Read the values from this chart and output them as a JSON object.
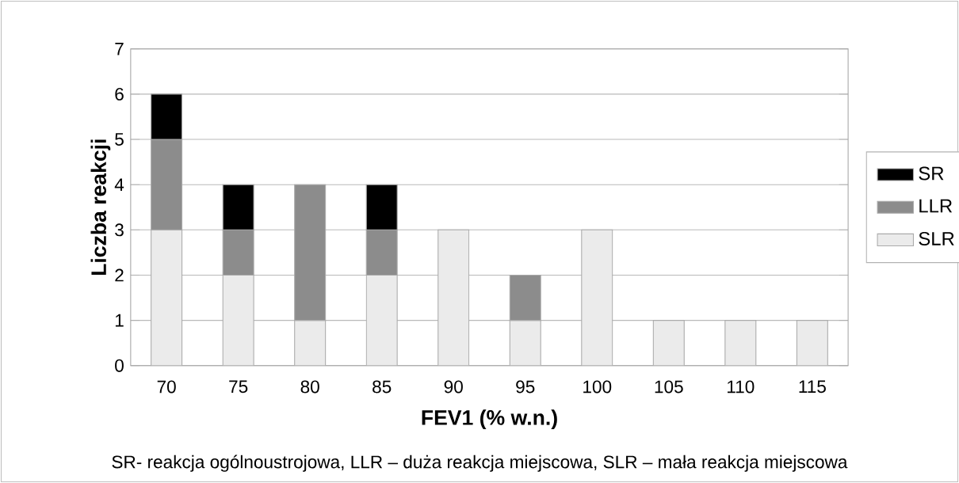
{
  "chart_data": {
    "type": "bar",
    "stacked": true,
    "xlabel": "FEV1 (% w.n.)",
    "ylabel": "Liczba reakcji",
    "categories": [
      "70",
      "75",
      "80",
      "85",
      "90",
      "95",
      "100",
      "105",
      "110",
      "115"
    ],
    "series": [
      {
        "name": "SLR",
        "color": "#ebebeb",
        "values": [
          3,
          2,
          1,
          2,
          3,
          1,
          3,
          1,
          1,
          1
        ]
      },
      {
        "name": "LLR",
        "color": "#8c8c8c",
        "values": [
          2,
          1,
          3,
          1,
          null,
          1,
          null,
          null,
          null,
          null
        ]
      },
      {
        "name": "SR",
        "color": "#000000",
        "values": [
          1,
          1,
          null,
          1,
          null,
          null,
          null,
          null,
          null,
          null
        ]
      }
    ],
    "ylim": [
      0,
      7
    ],
    "yticks": [
      0,
      1,
      2,
      3,
      4,
      5,
      6,
      7
    ],
    "grid": "y",
    "legend": "right",
    "annotations": [
      "SR- reakcja ogólnoustrojowa, LLR – duża reakcja miejscowa, SLR – mała reakcja miejscowa"
    ]
  }
}
